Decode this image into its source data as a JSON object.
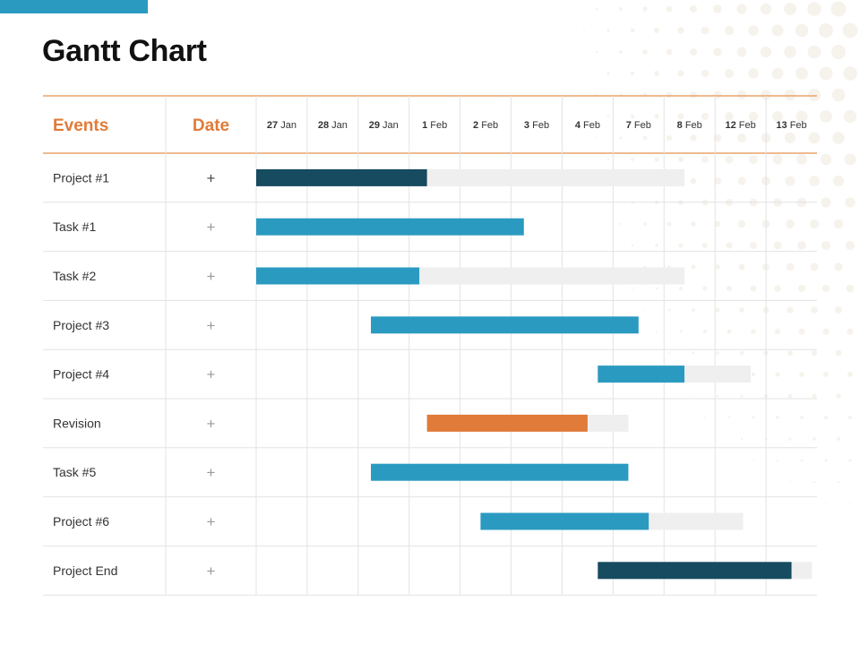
{
  "title": "Gantt Chart",
  "colors": {
    "accent": "#2b9ac0",
    "orange": "#e07b39",
    "dark_teal": "#164b60",
    "remaining": "#efefef",
    "grid": "#e3e3e3",
    "header_rule": "#e9a46c",
    "text": "#333333"
  },
  "chart_data": {
    "type": "gantt",
    "headers": {
      "events": "Events",
      "date": "Date"
    },
    "columns": [
      {
        "day": "27",
        "month": "Jan"
      },
      {
        "day": "28",
        "month": "Jan"
      },
      {
        "day": "29",
        "month": "Jan"
      },
      {
        "day": "1",
        "month": "Feb"
      },
      {
        "day": "2",
        "month": "Feb"
      },
      {
        "day": "3",
        "month": "Feb"
      },
      {
        "day": "4",
        "month": "Feb"
      },
      {
        "day": "7",
        "month": "Feb"
      },
      {
        "day": "8",
        "month": "Feb"
      },
      {
        "day": "12",
        "month": "Feb"
      },
      {
        "day": "13",
        "month": "Feb"
      }
    ],
    "tasks": [
      {
        "label": "Project #1",
        "date": "+",
        "start": 0.0,
        "progress_end": 3.35,
        "end": 8.4,
        "color": "#164b60"
      },
      {
        "label": "Task #1",
        "date": "+",
        "start": 0.0,
        "progress_end": 5.25,
        "end": 5.25,
        "color": "#2b9ac0"
      },
      {
        "label": "Task #2",
        "date": "+",
        "start": 0.0,
        "progress_end": 3.2,
        "end": 8.4,
        "color": "#2b9ac0"
      },
      {
        "label": "Project #3",
        "date": "+",
        "start": 2.25,
        "progress_end": 7.5,
        "end": 7.5,
        "color": "#2b9ac0"
      },
      {
        "label": "Project #4",
        "date": "+",
        "start": 6.7,
        "progress_end": 8.4,
        "end": 9.7,
        "color": "#2b9ac0"
      },
      {
        "label": "Revision",
        "date": "+",
        "start": 3.35,
        "progress_end": 6.5,
        "end": 7.3,
        "color": "#e07b39"
      },
      {
        "label": "Task #5",
        "date": "+",
        "start": 2.25,
        "progress_end": 7.3,
        "end": 7.3,
        "color": "#2b9ac0"
      },
      {
        "label": "Project #6",
        "date": "+",
        "start": 4.4,
        "progress_end": 7.7,
        "end": 9.55,
        "color": "#2b9ac0"
      },
      {
        "label": "Project End",
        "date": "+",
        "start": 6.7,
        "progress_end": 10.5,
        "end": 10.9,
        "color": "#164b60"
      }
    ]
  }
}
